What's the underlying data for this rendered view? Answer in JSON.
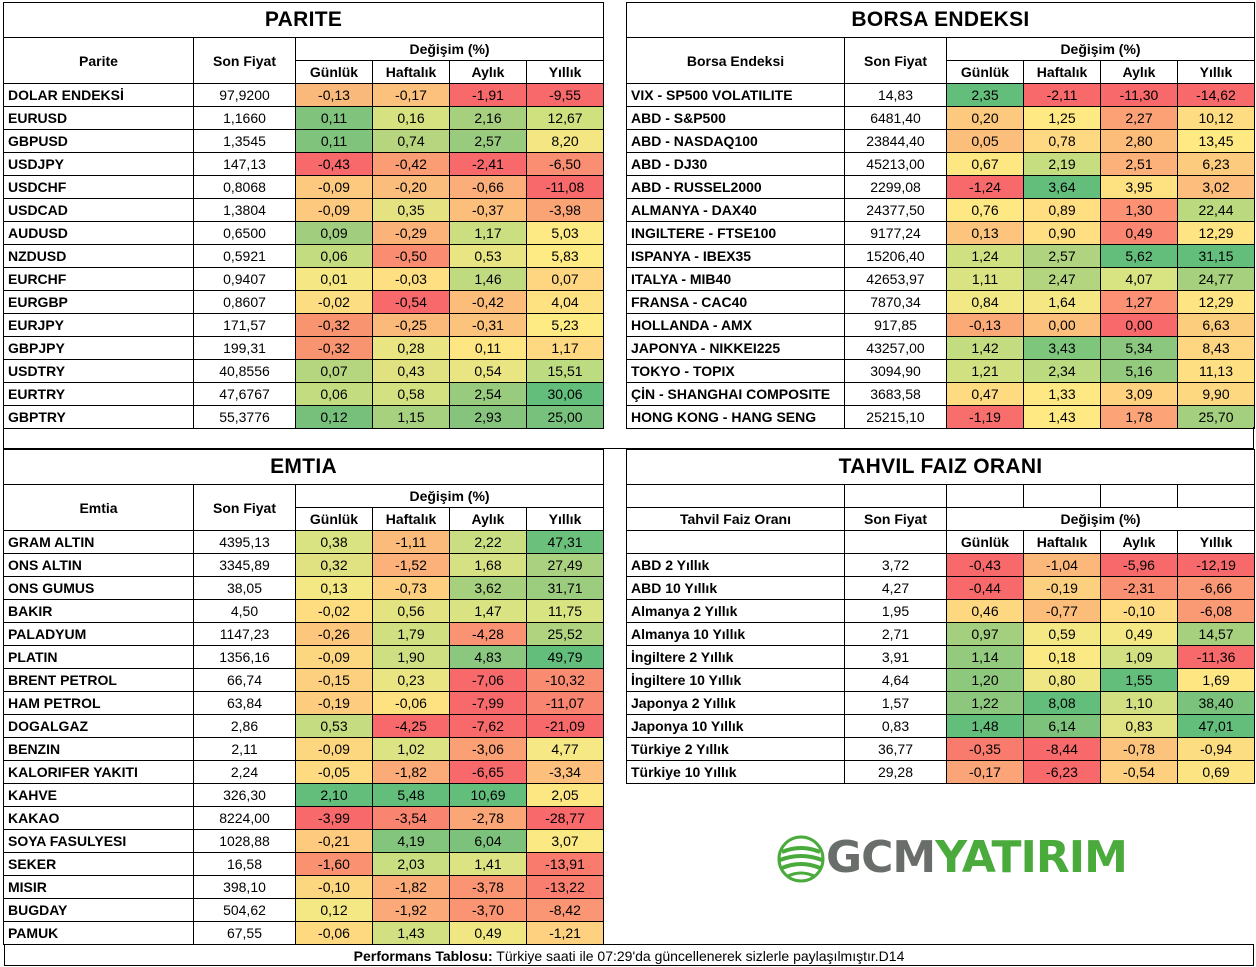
{
  "parite": {
    "title": "PARITE",
    "col_name": "Parite",
    "col_price": "Son Fiyat",
    "col_change": "Değişim (%)",
    "periods": [
      "Günlük",
      "Haftalık",
      "Aylık",
      "Yıllık"
    ],
    "rows": [
      {
        "name": "DOLAR ENDEKSİ",
        "price": "97,9200",
        "vals": [
          "-0,13",
          "-0,17",
          "-1,91",
          "-9,55"
        ],
        "colors": [
          "#f8b97b",
          "#fbc17d",
          "#f8696b",
          "#f8696b"
        ]
      },
      {
        "name": "EURUSD",
        "price": "1,1660",
        "vals": [
          "0,11",
          "0,16",
          "2,16",
          "12,67"
        ],
        "colors": [
          "#7fc37c",
          "#d5e27f",
          "#a6d07e",
          "#cfe07f"
        ]
      },
      {
        "name": "GBPUSD",
        "price": "1,3545",
        "vals": [
          "0,11",
          "0,74",
          "2,57",
          "8,20"
        ],
        "colors": [
          "#7fc37c",
          "#b7d57e",
          "#98cb7d",
          "#f4e783"
        ]
      },
      {
        "name": "USDJPY",
        "price": "147,13",
        "vals": [
          "-0,43",
          "-0,42",
          "-2,41",
          "-6,50"
        ],
        "colors": [
          "#f8696b",
          "#fa9d75",
          "#f8696b",
          "#f98e72"
        ]
      },
      {
        "name": "USDCHF",
        "price": "0,8068",
        "vals": [
          "-0,09",
          "-0,20",
          "-0,66",
          "-11,08"
        ],
        "colors": [
          "#fcc97e",
          "#fbbd7c",
          "#fbae79",
          "#f8696b"
        ]
      },
      {
        "name": "USDCAD",
        "price": "1,3804",
        "vals": [
          "-0,09",
          "0,35",
          "-0,37",
          "-3,98"
        ],
        "colors": [
          "#fcc97e",
          "#e5e381",
          "#fcbf7b",
          "#faa476"
        ]
      },
      {
        "name": "AUDUSD",
        "price": "0,6500",
        "vals": [
          "0,09",
          "-0,29",
          "1,17",
          "5,03"
        ],
        "colors": [
          "#a1ce7e",
          "#fbb379",
          "#cbdf80",
          "#fdea84"
        ]
      },
      {
        "name": "NZDUSD",
        "price": "0,5921",
        "vals": [
          "0,06",
          "-0,50",
          "0,53",
          "5,83"
        ],
        "colors": [
          "#c4dc80",
          "#f98c71",
          "#e9e583",
          "#ffeb84"
        ]
      },
      {
        "name": "EURCHF",
        "price": "0,9407",
        "vals": [
          "0,01",
          "-0,03",
          "1,46",
          "0,07"
        ],
        "colors": [
          "#f5e884",
          "#fedf81",
          "#c0da80",
          "#fed681"
        ]
      },
      {
        "name": "EURGBP",
        "price": "0,8607",
        "vals": [
          "-0,02",
          "-0,54",
          "-0,42",
          "4,04"
        ],
        "colors": [
          "#fddd82",
          "#f8696b",
          "#fcbd7b",
          "#fee282"
        ]
      },
      {
        "name": "EURJPY",
        "price": "171,57",
        "vals": [
          "-0,32",
          "-0,25",
          "-0,31",
          "5,23"
        ],
        "colors": [
          "#f99470",
          "#fbb97a",
          "#fcc37c",
          "#ffeb84"
        ]
      },
      {
        "name": "GBPJPY",
        "price": "199,31",
        "vals": [
          "-0,32",
          "0,28",
          "0,11",
          "1,17"
        ],
        "colors": [
          "#f99470",
          "#e9e583",
          "#fee782",
          "#fed981"
        ]
      },
      {
        "name": "USDTRY",
        "price": "40,8556",
        "vals": [
          "0,07",
          "0,43",
          "0,54",
          "15,51"
        ],
        "colors": [
          "#b6d57f",
          "#e0e282",
          "#e9e583",
          "#bddb80"
        ]
      },
      {
        "name": "EURTRY",
        "price": "47,6767",
        "vals": [
          "0,06",
          "0,58",
          "2,54",
          "30,06"
        ],
        "colors": [
          "#c4dc80",
          "#d3e181",
          "#98cb7d",
          "#63be7b"
        ]
      },
      {
        "name": "GBPTRY",
        "price": "55,3776",
        "vals": [
          "0,12",
          "1,15",
          "2,93",
          "25,00"
        ],
        "colors": [
          "#77c07c",
          "#a7d07f",
          "#86c47d",
          "#78c17c"
        ]
      }
    ]
  },
  "borsa": {
    "title": "BORSA ENDEKSI",
    "col_name": "Borsa Endeksi",
    "col_price": "Son Fiyat",
    "col_change": "Değişim (%)",
    "periods": [
      "Günlük",
      "Haftalık",
      "Aylık",
      "Yıllık"
    ],
    "rows": [
      {
        "name": "VIX  - SP500 VOLATILITE",
        "price": "14,83",
        "vals": [
          "2,35",
          "-2,11",
          "-11,30",
          "-14,62"
        ],
        "colors": [
          "#63be7b",
          "#f8696b",
          "#f8696b",
          "#f8696b"
        ]
      },
      {
        "name": "ABD - S&P500",
        "price": "6481,40",
        "vals": [
          "0,20",
          "1,25",
          "2,27",
          "10,12"
        ],
        "colors": [
          "#fcc97e",
          "#fee983",
          "#fca076",
          "#fedc81"
        ]
      },
      {
        "name": "ABD - NASDAQ100",
        "price": "23844,40",
        "vals": [
          "0,05",
          "0,78",
          "2,80",
          "13,45"
        ],
        "colors": [
          "#fcbf7b",
          "#fed981",
          "#fcbd7b",
          "#fee983"
        ]
      },
      {
        "name": "ABD - DJ30",
        "price": "45213,00",
        "vals": [
          "0,67",
          "2,19",
          "2,51",
          "6,23"
        ],
        "colors": [
          "#fde783",
          "#c6dd80",
          "#fdb17a",
          "#fdcb7e"
        ]
      },
      {
        "name": "ABD - RUSSEL2000",
        "price": "2299,08",
        "vals": [
          "-1,24",
          "3,64",
          "3,95",
          "3,02"
        ],
        "colors": [
          "#f8696b",
          "#63be7b",
          "#fee282",
          "#fdbd7c"
        ]
      },
      {
        "name": "ALMANYA - DAX40",
        "price": "24377,50",
        "vals": [
          "0,76",
          "0,89",
          "1,30",
          "22,44"
        ],
        "colors": [
          "#fde883",
          "#ffdf81",
          "#fc9273",
          "#bbd97f"
        ]
      },
      {
        "name": "INGILTERE - FTSE100",
        "price": "9177,24",
        "vals": [
          "0,13",
          "0,90",
          "0,49",
          "12,29"
        ],
        "colors": [
          "#fcc47c",
          "#ffdf81",
          "#fb8671",
          "#fee482"
        ]
      },
      {
        "name": "ISPANYA - IBEX35",
        "price": "15206,40",
        "vals": [
          "1,24",
          "2,57",
          "5,62",
          "31,15"
        ],
        "colors": [
          "#cfe081",
          "#b0d37f",
          "#63be7b",
          "#63be7b"
        ]
      },
      {
        "name": "ITALYA - MIB40",
        "price": "42653,97",
        "vals": [
          "1,11",
          "2,47",
          "4,07",
          "24,77"
        ],
        "colors": [
          "#d9e381",
          "#b4d57f",
          "#d8e382",
          "#a6d07e"
        ]
      },
      {
        "name": "FRANSA - CAC40",
        "price": "7870,34",
        "vals": [
          "0,84",
          "1,64",
          "1,27",
          "12,29"
        ],
        "colors": [
          "#f2e984",
          "#f5e884",
          "#fc9273",
          "#fee482"
        ]
      },
      {
        "name": "HOLLANDA - AMX",
        "price": "917,85",
        "vals": [
          "-0,13",
          "0,00",
          "0,00",
          "6,63"
        ],
        "colors": [
          "#fbaa77",
          "#fdc07c",
          "#f8696b",
          "#fdcd7e"
        ]
      },
      {
        "name": "JAPONYA - NIKKEI225",
        "price": "43257,00",
        "vals": [
          "1,42",
          "3,43",
          "5,34",
          "8,43"
        ],
        "colors": [
          "#c3dc80",
          "#7ec67c",
          "#8bc77e",
          "#fed580"
        ]
      },
      {
        "name": "TOKYO - TOPIX",
        "price": "3094,90",
        "vals": [
          "1,21",
          "2,34",
          "5,16",
          "11,13"
        ],
        "colors": [
          "#d1e181",
          "#bcda80",
          "#93ca7e",
          "#fee082"
        ]
      },
      {
        "name": "ÇİN - SHANGHAI COMPOSITE",
        "price": "3683,58",
        "vals": [
          "0,47",
          "1,33",
          "3,09",
          "9,90"
        ],
        "colors": [
          "#fedb81",
          "#fee883",
          "#fed27f",
          "#fed880"
        ]
      },
      {
        "name": "HONG KONG - HANG SENG",
        "price": "25215,10",
        "vals": [
          "-1,19",
          "1,43",
          "1,78",
          "25,70"
        ],
        "colors": [
          "#f86e6c",
          "#fee983",
          "#fca477",
          "#a3cf7e"
        ]
      }
    ]
  },
  "emtia": {
    "title": "EMTIA",
    "col_name": "Emtia",
    "col_price": "Son Fiyat",
    "col_change": "Değişim (%)",
    "periods": [
      "Günlük",
      "Haftalık",
      "Aylık",
      "Yıllık"
    ],
    "rows": [
      {
        "name": "GRAM ALTIN",
        "price": "4395,13",
        "vals": [
          "0,38",
          "-1,11",
          "2,22",
          "47,31"
        ],
        "colors": [
          "#d9e381",
          "#fbbc7b",
          "#c9de80",
          "#6bc17c"
        ]
      },
      {
        "name": "ONS ALTIN",
        "price": "3345,89",
        "vals": [
          "0,32",
          "-1,52",
          "1,68",
          "27,49"
        ],
        "colors": [
          "#e0e282",
          "#fbb179",
          "#d5e182",
          "#a9d17f"
        ]
      },
      {
        "name": "ONS GUMUS",
        "price": "38,05",
        "vals": [
          "0,13",
          "-0,73",
          "3,62",
          "31,71"
        ],
        "colors": [
          "#f3e884",
          "#fdcf7f",
          "#a6d07e",
          "#9ccc7d"
        ]
      },
      {
        "name": "BAKIR",
        "price": "4,50",
        "vals": [
          "-0,02",
          "0,56",
          "1,47",
          "11,75"
        ],
        "colors": [
          "#fedd81",
          "#e3e382",
          "#d9e382",
          "#d8e382"
        ]
      },
      {
        "name": "PALADYUM",
        "price": "1147,23",
        "vals": [
          "-0,26",
          "1,79",
          "-4,28",
          "25,52"
        ],
        "colors": [
          "#fdc67d",
          "#d0e081",
          "#fa9373",
          "#afd37f"
        ]
      },
      {
        "name": "PLATIN",
        "price": "1356,16",
        "vals": [
          "-0,09",
          "1,90",
          "4,83",
          "49,79"
        ],
        "colors": [
          "#fdd780",
          "#cedf81",
          "#8bc77e",
          "#63be7b"
        ]
      },
      {
        "name": "BRENT PETROL",
        "price": "66,74",
        "vals": [
          "-0,15",
          "0,23",
          "-7,06",
          "-10,32"
        ],
        "colors": [
          "#fdd07f",
          "#eae583",
          "#f8696b",
          "#f98b71"
        ]
      },
      {
        "name": "HAM PETROL",
        "price": "63,84",
        "vals": [
          "-0,19",
          "-0,06",
          "-7,99",
          "-11,07"
        ],
        "colors": [
          "#fdcc7e",
          "#fee282",
          "#f8696b",
          "#f98570"
        ]
      },
      {
        "name": "DOGALGAZ",
        "price": "2,86",
        "vals": [
          "0,53",
          "-4,25",
          "-7,62",
          "-21,09"
        ],
        "colors": [
          "#c5dc80",
          "#f8696b",
          "#f8696b",
          "#f8696b"
        ]
      },
      {
        "name": "BENZIN",
        "price": "2,11",
        "vals": [
          "-0,09",
          "1,02",
          "-3,06",
          "4,77"
        ],
        "colors": [
          "#fdd780",
          "#dce382",
          "#fb9f75",
          "#f6e884"
        ]
      },
      {
        "name": "KALORIFER YAKITI",
        "price": "2,24",
        "vals": [
          "-0,05",
          "-1,82",
          "-6,65",
          "-3,34"
        ],
        "colors": [
          "#feda81",
          "#fbab78",
          "#f8696b",
          "#fcbf7c"
        ]
      },
      {
        "name": "KAHVE",
        "price": "326,30",
        "vals": [
          "2,10",
          "5,48",
          "10,69",
          "2,05"
        ],
        "colors": [
          "#63be7b",
          "#63be7b",
          "#63be7b",
          "#fde783"
        ]
      },
      {
        "name": "KAKAO",
        "price": "8224,00",
        "vals": [
          "-3,99",
          "-3,54",
          "-2,78",
          "-28,77"
        ],
        "colors": [
          "#f8696b",
          "#f98570",
          "#fba676",
          "#f8696b"
        ]
      },
      {
        "name": "SOYA FASULYESI",
        "price": "1028,88",
        "vals": [
          "-0,21",
          "4,19",
          "6,04",
          "3,07"
        ],
        "colors": [
          "#fdca7e",
          "#84c57d",
          "#7cc27c",
          "#fbe983"
        ]
      },
      {
        "name": "SEKER",
        "price": "16,58",
        "vals": [
          "-1,60",
          "2,03",
          "1,41",
          "-13,91"
        ],
        "colors": [
          "#fa9272",
          "#c8de80",
          "#dbe382",
          "#f97b6e"
        ]
      },
      {
        "name": "MISIR",
        "price": "398,10",
        "vals": [
          "-0,10",
          "-1,82",
          "-3,78",
          "-13,22"
        ],
        "colors": [
          "#fdd680",
          "#fbab78",
          "#fa9472",
          "#f97e6f"
        ]
      },
      {
        "name": "BUGDAY",
        "price": "504,62",
        "vals": [
          "0,12",
          "-1,92",
          "-3,70",
          "-8,42"
        ],
        "colors": [
          "#f4e884",
          "#fba978",
          "#fa9472",
          "#fa9673"
        ]
      },
      {
        "name": "PAMUK",
        "price": "67,55",
        "vals": [
          "-0,06",
          "1,43",
          "0,49",
          "-1,21"
        ],
        "colors": [
          "#fed980",
          "#d3e081",
          "#f0e783",
          "#fdd17f"
        ]
      }
    ]
  },
  "tahvil": {
    "title": "TAHVIL FAIZ ORANI",
    "col_name": "Tahvil Faiz Oranı",
    "col_price": "Son Fiyat",
    "col_change": "Değişim (%)",
    "periods": [
      "Günlük",
      "Haftalık",
      "Aylık",
      "Yıllık"
    ],
    "rows": [
      {
        "name": "ABD 2 Yıllık",
        "price": "3,72",
        "vals": [
          "-0,43",
          "-1,04",
          "-5,96",
          "-12,19"
        ],
        "colors": [
          "#f8696b",
          "#fcb77a",
          "#f8696b",
          "#f8696b"
        ]
      },
      {
        "name": "ABD 10 Yıllık",
        "price": "4,27",
        "vals": [
          "-0,44",
          "-0,19",
          "-2,31",
          "-6,66"
        ],
        "colors": [
          "#f8696b",
          "#fdd07f",
          "#fa9172",
          "#fa9774"
        ]
      },
      {
        "name": "Almanya 2 Yıllık",
        "price": "1,95",
        "vals": [
          "0,46",
          "-0,77",
          "-0,10",
          "-6,08"
        ],
        "colors": [
          "#fed881",
          "#fcbd7b",
          "#fedb81",
          "#fa9a74"
        ]
      },
      {
        "name": "Almanya 10 Yıllık",
        "price": "2,71",
        "vals": [
          "0,97",
          "0,59",
          "0,49",
          "14,57"
        ],
        "colors": [
          "#a3cf7e",
          "#f3e884",
          "#f4e884",
          "#a6d07e"
        ]
      },
      {
        "name": "İngiltere 2 Yıllık",
        "price": "3,91",
        "vals": [
          "1,14",
          "0,18",
          "1,09",
          "-11,36"
        ],
        "colors": [
          "#93ca7e",
          "#fbe983",
          "#d3e081",
          "#f8696b"
        ]
      },
      {
        "name": "İngiltere 10 Yıllık",
        "price": "4,64",
        "vals": [
          "1,20",
          "0,80",
          "1,55",
          "1,69"
        ],
        "colors": [
          "#8ec87d",
          "#efe783",
          "#63be7b",
          "#fee783"
        ]
      },
      {
        "name": "Japonya 2 Yıllık",
        "price": "1,57",
        "vals": [
          "1,22",
          "8,08",
          "1,10",
          "38,40"
        ],
        "colors": [
          "#8cc77d",
          "#63be7b",
          "#d2e081",
          "#7bc27c"
        ]
      },
      {
        "name": "Japonya 10 Yıllık",
        "price": "0,83",
        "vals": [
          "1,48",
          "6,14",
          "0,83",
          "47,01"
        ],
        "colors": [
          "#63be7b",
          "#7ec37c",
          "#e2e382",
          "#63be7b"
        ]
      },
      {
        "name": "Türkiye 2 Yıllık",
        "price": "36,77",
        "vals": [
          "-0,35",
          "-8,44",
          "-0,78",
          "-0,94"
        ],
        "colors": [
          "#f97b6e",
          "#f8696b",
          "#fcc37c",
          "#fddd81"
        ]
      },
      {
        "name": "Türkiye 10 Yıllık",
        "price": "29,28",
        "vals": [
          "-0,17",
          "-6,23",
          "-0,54",
          "0,69"
        ],
        "colors": [
          "#fba477",
          "#f8696b",
          "#fdcf7e",
          "#fde483"
        ]
      }
    ]
  },
  "footer": {
    "bold": "Performans Tablosu:",
    "text": " Türkiye saati ile 07:29'da güncellenerek sizlerle paylaşılmıştır.D14"
  },
  "logo": {
    "part1": "GCM",
    "part2": "YATIRIM",
    "green": "#4aaa3c",
    "gray": "#6a6e6a"
  }
}
